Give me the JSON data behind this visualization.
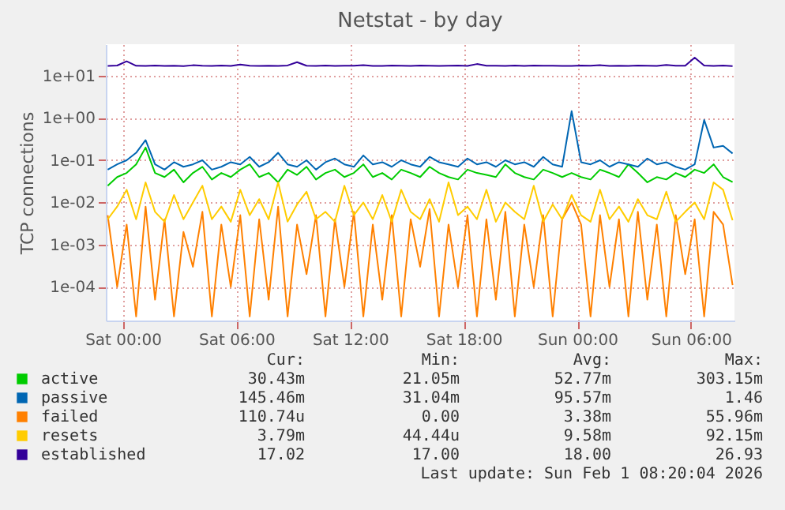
{
  "chart_data": {
    "type": "line",
    "title": "Netstat - by day",
    "ylabel": "TCP connections",
    "log": true,
    "grid": true,
    "legend": "bottom",
    "xlim": [
      "2026-01-30T23:06",
      "2026-02-01T08:18"
    ],
    "xticks": [
      {
        "value": "2026-01-31T00:00",
        "label": "Sat 00:00"
      },
      {
        "value": "2026-01-31T06:00",
        "label": "Sat 06:00"
      },
      {
        "value": "2026-01-31T12:00",
        "label": "Sat 12:00"
      },
      {
        "value": "2026-01-31T18:00",
        "label": "Sat 18:00"
      },
      {
        "value": "2026-02-01T00:00",
        "label": "Sun 00:00"
      },
      {
        "value": "2026-02-01T06:00",
        "label": "Sun 06:00"
      }
    ],
    "ylim": [
      1.6e-05,
      56
    ],
    "yticks": [
      {
        "value": 0.0001,
        "label": "1e-04"
      },
      {
        "value": 0.001,
        "label": "1e-03"
      },
      {
        "value": 0.01,
        "label": "1e-02"
      },
      {
        "value": 0.1,
        "label": "1e-01"
      },
      {
        "value": 1,
        "label": "1e+00"
      },
      {
        "value": 10,
        "label": "1e+01"
      }
    ],
    "x": [
      "2026-01-30T23:12",
      "2026-01-30T23:42",
      "2026-01-31T00:12",
      "2026-01-31T00:42",
      "2026-01-31T01:12",
      "2026-01-31T01:42",
      "2026-01-31T02:12",
      "2026-01-31T02:42",
      "2026-01-31T03:12",
      "2026-01-31T03:42",
      "2026-01-31T04:12",
      "2026-01-31T04:42",
      "2026-01-31T05:12",
      "2026-01-31T05:42",
      "2026-01-31T06:12",
      "2026-01-31T06:42",
      "2026-01-31T07:12",
      "2026-01-31T07:42",
      "2026-01-31T08:12",
      "2026-01-31T08:42",
      "2026-01-31T09:12",
      "2026-01-31T09:42",
      "2026-01-31T10:12",
      "2026-01-31T10:42",
      "2026-01-31T11:12",
      "2026-01-31T11:42",
      "2026-01-31T12:12",
      "2026-01-31T12:42",
      "2026-01-31T13:12",
      "2026-01-31T13:42",
      "2026-01-31T14:12",
      "2026-01-31T14:42",
      "2026-01-31T15:12",
      "2026-01-31T15:42",
      "2026-01-31T16:12",
      "2026-01-31T16:42",
      "2026-01-31T17:12",
      "2026-01-31T17:42",
      "2026-01-31T18:12",
      "2026-01-31T18:42",
      "2026-01-31T19:12",
      "2026-01-31T19:42",
      "2026-01-31T20:12",
      "2026-01-31T20:42",
      "2026-01-31T21:12",
      "2026-01-31T21:42",
      "2026-01-31T22:12",
      "2026-01-31T22:42",
      "2026-01-31T23:12",
      "2026-01-31T23:42",
      "2026-02-01T00:12",
      "2026-02-01T00:42",
      "2026-02-01T01:12",
      "2026-02-01T01:42",
      "2026-02-01T02:12",
      "2026-02-01T02:42",
      "2026-02-01T03:12",
      "2026-02-01T03:42",
      "2026-02-01T04:12",
      "2026-02-01T04:42",
      "2026-02-01T05:12",
      "2026-02-01T05:42",
      "2026-02-01T06:12",
      "2026-02-01T06:42",
      "2026-02-01T07:12",
      "2026-02-01T07:42",
      "2026-02-01T08:12"
    ],
    "series": [
      {
        "name": "active",
        "color": "#00cc00",
        "values": [
          0.025,
          0.04,
          0.05,
          0.08,
          0.2,
          0.05,
          0.04,
          0.06,
          0.03,
          0.05,
          0.07,
          0.035,
          0.05,
          0.04,
          0.06,
          0.08,
          0.04,
          0.05,
          0.03,
          0.06,
          0.045,
          0.07,
          0.035,
          0.05,
          0.06,
          0.04,
          0.05,
          0.08,
          0.04,
          0.05,
          0.035,
          0.06,
          0.05,
          0.04,
          0.07,
          0.05,
          0.04,
          0.035,
          0.06,
          0.05,
          0.045,
          0.04,
          0.08,
          0.05,
          0.04,
          0.035,
          0.06,
          0.05,
          0.04,
          0.05,
          0.04,
          0.035,
          0.06,
          0.05,
          0.04,
          0.08,
          0.05,
          0.03,
          0.04,
          0.035,
          0.05,
          0.04,
          0.06,
          0.05,
          0.08,
          0.04,
          0.03043
        ]
      },
      {
        "name": "passive",
        "color": "#0066b3",
        "values": [
          0.06,
          0.08,
          0.1,
          0.15,
          0.3,
          0.08,
          0.06,
          0.09,
          0.07,
          0.08,
          0.1,
          0.06,
          0.07,
          0.09,
          0.08,
          0.12,
          0.07,
          0.09,
          0.15,
          0.08,
          0.07,
          0.1,
          0.06,
          0.09,
          0.11,
          0.08,
          0.07,
          0.13,
          0.08,
          0.09,
          0.07,
          0.1,
          0.08,
          0.07,
          0.12,
          0.09,
          0.08,
          0.07,
          0.11,
          0.08,
          0.09,
          0.07,
          0.1,
          0.08,
          0.09,
          0.07,
          0.12,
          0.08,
          0.07,
          1.46,
          0.09,
          0.08,
          0.1,
          0.07,
          0.09,
          0.08,
          0.07,
          0.11,
          0.08,
          0.09,
          0.07,
          0.06,
          0.08,
          0.9,
          0.2,
          0.22,
          0.145
        ]
      },
      {
        "name": "failed",
        "color": "#ff8000",
        "values": [
          0.005,
          0.0001,
          0.003,
          2e-05,
          0.008,
          5e-05,
          0.004,
          2e-05,
          0.002,
          0.0003,
          0.006,
          2e-05,
          0.003,
          0.0001,
          0.005,
          2e-05,
          0.004,
          5e-05,
          0.008,
          2e-05,
          0.003,
          0.0002,
          0.005,
          2e-05,
          0.004,
          0.0001,
          0.006,
          2e-05,
          0.003,
          5e-05,
          0.005,
          2e-05,
          0.004,
          0.0003,
          0.007,
          2e-05,
          0.003,
          0.0001,
          0.005,
          2e-05,
          0.004,
          5e-05,
          0.006,
          2e-05,
          0.003,
          0.0001,
          0.005,
          2e-05,
          0.004,
          0.01,
          0.003,
          2e-05,
          0.005,
          0.0001,
          0.004,
          2e-05,
          0.006,
          5e-05,
          0.003,
          2e-05,
          0.005,
          0.0002,
          0.004,
          2e-05,
          0.006,
          0.003,
          0.00011
        ]
      },
      {
        "name": "resets",
        "color": "#ffcc00",
        "values": [
          0.004,
          0.008,
          0.02,
          0.004,
          0.03,
          0.006,
          0.0035,
          0.015,
          0.004,
          0.01,
          0.025,
          0.004,
          0.008,
          0.0035,
          0.02,
          0.005,
          0.012,
          0.004,
          0.03,
          0.0035,
          0.009,
          0.018,
          0.004,
          0.006,
          0.0035,
          0.025,
          0.005,
          0.01,
          0.004,
          0.015,
          0.0035,
          0.02,
          0.006,
          0.004,
          0.012,
          0.0035,
          0.03,
          0.005,
          0.008,
          0.004,
          0.02,
          0.0035,
          0.01,
          0.006,
          0.004,
          0.025,
          0.0035,
          0.009,
          0.004,
          0.015,
          0.005,
          0.0035,
          0.02,
          0.004,
          0.008,
          0.0035,
          0.012,
          0.005,
          0.004,
          0.018,
          0.0035,
          0.006,
          0.01,
          0.004,
          0.03,
          0.02,
          0.00379
        ]
      },
      {
        "name": "established",
        "color": "#330099",
        "values": [
          17.2,
          17.5,
          22,
          17.3,
          17.1,
          17.6,
          17.2,
          17.4,
          17.0,
          17.8,
          17.3,
          17.1,
          17.5,
          17.2,
          18.5,
          17.3,
          17.1,
          17.4,
          17.2,
          17.6,
          21,
          17.3,
          17.2,
          17.5,
          17.1,
          17.4,
          17.3,
          17.8,
          17.2,
          17.1,
          17.5,
          17.3,
          17.2,
          17.6,
          17.4,
          17.1,
          17.3,
          17.5,
          17.2,
          19,
          17.4,
          17.3,
          17.1,
          17.5,
          17.2,
          17.6,
          17.3,
          17.4,
          17.2,
          17.1,
          17.5,
          17.3,
          17.8,
          17.2,
          17.4,
          17.1,
          17.5,
          17.3,
          17.2,
          18,
          17.4,
          17.3,
          26.93,
          17.5,
          17.2,
          17.6,
          17.02
        ]
      }
    ],
    "annotations": [
      "Cur:",
      "Min:",
      "Avg:",
      "Max:",
      "30.43m",
      "21.05m",
      "52.77m",
      "303.15m",
      "145.46m",
      "31.04m",
      "95.57m",
      "1.46",
      "110.74u",
      "0.00",
      "3.38m",
      "55.96m",
      "3.79m",
      "44.44u",
      "9.58m",
      "92.15m",
      "17.02",
      "17.00",
      "18.00",
      "26.93",
      "Last update: Sun Feb  1 08:20:04 2026"
    ]
  }
}
